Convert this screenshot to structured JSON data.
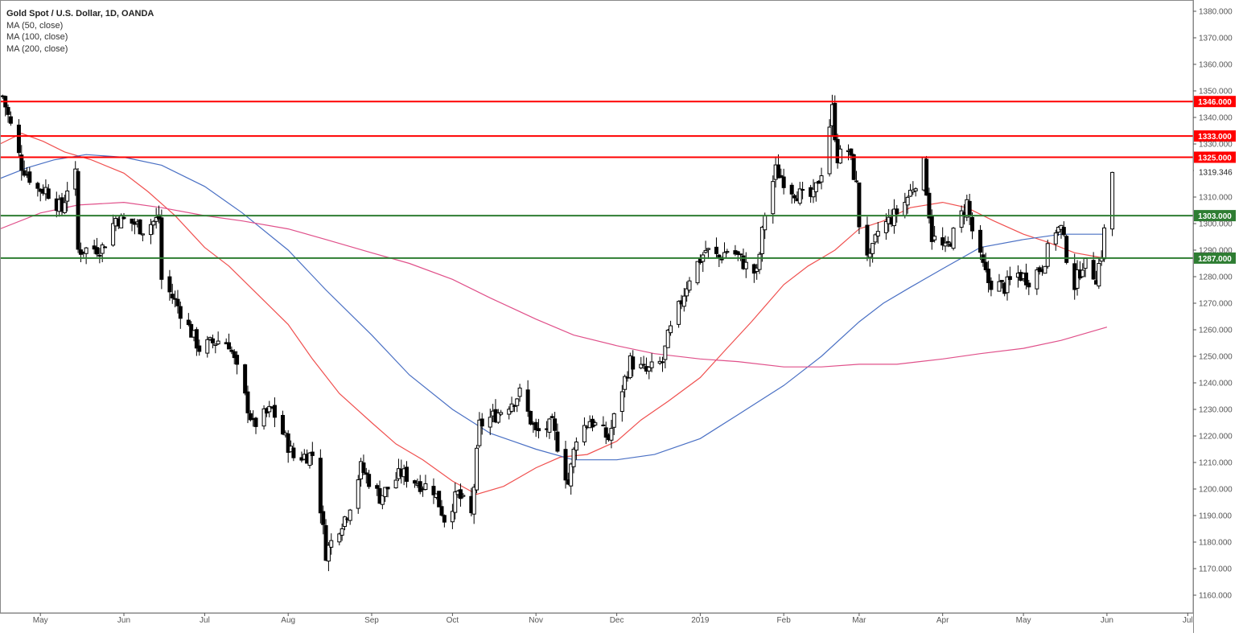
{
  "chart_data": {
    "type": "candlestick",
    "title": "Gold Spot / U.S. Dollar, 1D, OANDA",
    "indicators": [
      {
        "label": "MA (50, close)",
        "color": "#f0504f"
      },
      {
        "label": "MA (100, close)",
        "color": "#4a70c4"
      },
      {
        "label": "MA (200, close)",
        "color": "#e0508a"
      }
    ],
    "y_axis": {
      "ylim": [
        1155,
        1382
      ],
      "ticks": [
        1160,
        1170,
        1180,
        1190,
        1200,
        1210,
        1220,
        1230,
        1240,
        1250,
        1260,
        1270,
        1280,
        1290,
        1300,
        1310,
        1320,
        1330,
        1340,
        1350,
        1360,
        1370,
        1380
      ],
      "tick_labels": [
        "1160.000",
        "1170.000",
        "1180.000",
        "1190.000",
        "1200.000",
        "1210.000",
        "1220.000",
        "1230.000",
        "1240.000",
        "1250.000",
        "1260.000",
        "1270.000",
        "1280.000",
        "1290.000",
        "1300.000",
        "1310.000",
        "1320.000",
        "1330.000",
        "1340.000",
        "1350.000",
        "1360.000",
        "1370.000",
        "1380.000"
      ],
      "last_price": 1319.346,
      "last_price_label": "1319.346"
    },
    "x_axis": {
      "labels": [
        {
          "label": "May",
          "date": "2018-05-01"
        },
        {
          "label": "Jun",
          "date": "2018-06-01"
        },
        {
          "label": "Jul",
          "date": "2018-07-01"
        },
        {
          "label": "Aug",
          "date": "2018-08-01"
        },
        {
          "label": "Sep",
          "date": "2018-09-01"
        },
        {
          "label": "Oct",
          "date": "2018-10-01"
        },
        {
          "label": "Nov",
          "date": "2018-11-01"
        },
        {
          "label": "Dec",
          "date": "2018-12-01"
        },
        {
          "label": "2019",
          "date": "2019-01-01"
        },
        {
          "label": "Feb",
          "date": "2019-02-01"
        },
        {
          "label": "Mar",
          "date": "2019-03-01"
        },
        {
          "label": "Apr",
          "date": "2019-04-01"
        },
        {
          "label": "May",
          "date": "2019-05-01"
        },
        {
          "label": "Jun",
          "date": "2019-06-01"
        },
        {
          "label": "Jul",
          "date": "2019-07-01"
        }
      ],
      "range": [
        "2018-04-16",
        "2019-07-03"
      ]
    },
    "horizontal_levels": [
      {
        "value": 1346,
        "label": "1346.000",
        "kind": "resistance",
        "color": "#ff0000"
      },
      {
        "value": 1333,
        "label": "1333.000",
        "kind": "resistance",
        "color": "#ff0000"
      },
      {
        "value": 1325,
        "label": "1325.000",
        "kind": "resistance",
        "color": "#ff0000"
      },
      {
        "value": 1303,
        "label": "1303.000",
        "kind": "support",
        "color": "#2e7d32"
      },
      {
        "value": 1287,
        "label": "1287.000",
        "kind": "support",
        "color": "#2e7d32"
      }
    ],
    "price_path": [
      [
        "2018-04-17",
        1348
      ],
      [
        "2018-04-24",
        1322
      ],
      [
        "2018-04-30",
        1313
      ],
      [
        "2018-05-03",
        1313
      ],
      [
        "2018-05-09",
        1305
      ],
      [
        "2018-05-12",
        1318
      ],
      [
        "2018-05-14",
        1318
      ],
      [
        "2018-05-15",
        1290
      ],
      [
        "2018-05-24",
        1291
      ],
      [
        "2018-05-29",
        1302
      ],
      [
        "2018-06-05",
        1300
      ],
      [
        "2018-06-08",
        1298
      ],
      [
        "2018-06-14",
        1302
      ],
      [
        "2018-06-15",
        1279
      ],
      [
        "2018-06-21",
        1269
      ],
      [
        "2018-06-29",
        1253
      ],
      [
        "2018-07-06",
        1256
      ],
      [
        "2018-07-10",
        1255
      ],
      [
        "2018-07-19",
        1224
      ],
      [
        "2018-07-26",
        1230
      ],
      [
        "2018-08-03",
        1212
      ],
      [
        "2018-08-10",
        1213
      ],
      [
        "2018-08-13",
        1193
      ],
      [
        "2018-08-15",
        1176
      ],
      [
        "2018-08-20",
        1186
      ],
      [
        "2018-08-23",
        1191
      ],
      [
        "2018-08-28",
        1208
      ],
      [
        "2018-09-04",
        1197
      ],
      [
        "2018-09-12",
        1206
      ],
      [
        "2018-09-19",
        1202
      ],
      [
        "2018-09-24",
        1200
      ],
      [
        "2018-09-28",
        1189
      ],
      [
        "2018-10-03",
        1198
      ],
      [
        "2018-10-08",
        1190
      ],
      [
        "2018-10-11",
        1224
      ],
      [
        "2018-10-17",
        1228
      ],
      [
        "2018-10-23",
        1233
      ],
      [
        "2018-10-26",
        1236
      ],
      [
        "2018-11-01",
        1221
      ],
      [
        "2018-11-07",
        1224
      ],
      [
        "2018-11-10",
        1213
      ],
      [
        "2018-11-13",
        1202
      ],
      [
        "2018-11-16",
        1220
      ],
      [
        "2018-11-21",
        1226
      ],
      [
        "2018-11-28",
        1219
      ],
      [
        "2018-12-03",
        1238
      ],
      [
        "2018-12-06",
        1248
      ],
      [
        "2018-12-12",
        1244
      ],
      [
        "2018-12-18",
        1248
      ],
      [
        "2018-12-20",
        1257
      ],
      [
        "2018-12-24",
        1268
      ],
      [
        "2018-12-28",
        1280
      ],
      [
        "2019-01-03",
        1290
      ],
      [
        "2019-01-08",
        1287
      ],
      [
        "2019-01-12",
        1291
      ],
      [
        "2019-01-18",
        1284
      ],
      [
        "2019-01-22",
        1281
      ],
      [
        "2019-01-25",
        1304
      ],
      [
        "2019-01-29",
        1320
      ],
      [
        "2019-02-04",
        1313
      ],
      [
        "2019-02-08",
        1310
      ],
      [
        "2019-02-12",
        1310
      ],
      [
        "2019-02-15",
        1320
      ],
      [
        "2019-02-19",
        1343
      ],
      [
        "2019-02-21",
        1325
      ],
      [
        "2019-02-25",
        1328
      ],
      [
        "2019-02-28",
        1314
      ],
      [
        "2019-03-01",
        1300
      ],
      [
        "2019-03-05",
        1286
      ],
      [
        "2019-03-08",
        1297
      ],
      [
        "2019-03-14",
        1303
      ],
      [
        "2019-03-18",
        1308
      ],
      [
        "2019-03-25",
        1322
      ],
      [
        "2019-03-28",
        1295
      ],
      [
        "2019-04-02",
        1290
      ],
      [
        "2019-04-05",
        1296
      ],
      [
        "2019-04-10",
        1308
      ],
      [
        "2019-04-13",
        1292
      ],
      [
        "2019-04-18",
        1278
      ],
      [
        "2019-04-24",
        1276
      ],
      [
        "2019-04-29",
        1281
      ],
      [
        "2019-05-03",
        1279
      ],
      [
        "2019-05-08",
        1284
      ],
      [
        "2019-05-13",
        1298
      ],
      [
        "2019-05-15",
        1298
      ],
      [
        "2019-05-17",
        1288
      ],
      [
        "2019-05-20",
        1277
      ],
      [
        "2019-05-23",
        1285
      ],
      [
        "2019-05-28",
        1280
      ],
      [
        "2019-05-30",
        1289
      ],
      [
        "2019-06-01",
        1305
      ],
      [
        "2019-06-03",
        1319.346
      ]
    ],
    "moving_averages": [
      {
        "label": "MA (50, close)",
        "color": "#f0504f",
        "points": [
          [
            "2018-04-16",
            1330
          ],
          [
            "2018-04-24",
            1334
          ],
          [
            "2018-05-02",
            1331
          ],
          [
            "2018-05-10",
            1327
          ],
          [
            "2018-05-20",
            1324
          ],
          [
            "2018-06-01",
            1319
          ],
          [
            "2018-06-10",
            1312
          ],
          [
            "2018-06-20",
            1303
          ],
          [
            "2018-07-01",
            1291
          ],
          [
            "2018-07-10",
            1284
          ],
          [
            "2018-07-20",
            1274
          ],
          [
            "2018-08-01",
            1262
          ],
          [
            "2018-08-10",
            1249
          ],
          [
            "2018-08-20",
            1236
          ],
          [
            "2018-09-01",
            1225
          ],
          [
            "2018-09-10",
            1217
          ],
          [
            "2018-09-20",
            1211
          ],
          [
            "2018-10-01",
            1203
          ],
          [
            "2018-10-10",
            1198
          ],
          [
            "2018-10-20",
            1201
          ],
          [
            "2018-11-01",
            1208
          ],
          [
            "2018-11-10",
            1212
          ],
          [
            "2018-11-20",
            1213
          ],
          [
            "2018-12-01",
            1218
          ],
          [
            "2018-12-10",
            1226
          ],
          [
            "2018-12-20",
            1233
          ],
          [
            "2019-01-01",
            1242
          ],
          [
            "2019-01-10",
            1252
          ],
          [
            "2019-01-20",
            1263
          ],
          [
            "2019-02-01",
            1277
          ],
          [
            "2019-02-10",
            1284
          ],
          [
            "2019-02-20",
            1290
          ],
          [
            "2019-03-01",
            1298
          ],
          [
            "2019-03-10",
            1301
          ],
          [
            "2019-03-20",
            1306
          ],
          [
            "2019-04-01",
            1308
          ],
          [
            "2019-04-10",
            1306
          ],
          [
            "2019-04-20",
            1301
          ],
          [
            "2019-05-01",
            1296
          ],
          [
            "2019-05-10",
            1293
          ],
          [
            "2019-05-20",
            1289
          ],
          [
            "2019-05-31",
            1287
          ]
        ]
      },
      {
        "label": "MA (100, close)",
        "color": "#4a70c4",
        "points": [
          [
            "2018-04-16",
            1317
          ],
          [
            "2018-04-26",
            1321
          ],
          [
            "2018-05-06",
            1324
          ],
          [
            "2018-05-18",
            1326
          ],
          [
            "2018-06-01",
            1325
          ],
          [
            "2018-06-15",
            1322
          ],
          [
            "2018-07-01",
            1314
          ],
          [
            "2018-07-15",
            1304
          ],
          [
            "2018-08-01",
            1290
          ],
          [
            "2018-08-15",
            1275
          ],
          [
            "2018-09-01",
            1258
          ],
          [
            "2018-09-15",
            1243
          ],
          [
            "2018-10-01",
            1230
          ],
          [
            "2018-10-15",
            1221
          ],
          [
            "2018-11-01",
            1215
          ],
          [
            "2018-11-15",
            1211
          ],
          [
            "2018-12-01",
            1211
          ],
          [
            "2018-12-15",
            1213
          ],
          [
            "2019-01-01",
            1219
          ],
          [
            "2019-01-15",
            1228
          ],
          [
            "2019-02-01",
            1239
          ],
          [
            "2019-02-15",
            1250
          ],
          [
            "2019-03-01",
            1263
          ],
          [
            "2019-03-10",
            1270
          ],
          [
            "2019-03-20",
            1276
          ],
          [
            "2019-04-01",
            1283
          ],
          [
            "2019-04-15",
            1291
          ],
          [
            "2019-05-01",
            1294
          ],
          [
            "2019-05-15",
            1296
          ],
          [
            "2019-05-31",
            1296
          ]
        ]
      },
      {
        "label": "MA (200, close)",
        "color": "#e0508a",
        "points": [
          [
            "2018-04-16",
            1298
          ],
          [
            "2018-05-01",
            1304
          ],
          [
            "2018-05-15",
            1307
          ],
          [
            "2018-06-01",
            1308
          ],
          [
            "2018-06-15",
            1306
          ],
          [
            "2018-07-01",
            1303
          ],
          [
            "2018-07-15",
            1301
          ],
          [
            "2018-08-01",
            1298
          ],
          [
            "2018-08-15",
            1294
          ],
          [
            "2018-09-01",
            1289
          ],
          [
            "2018-09-15",
            1285
          ],
          [
            "2018-10-01",
            1279
          ],
          [
            "2018-10-15",
            1272
          ],
          [
            "2018-11-01",
            1264
          ],
          [
            "2018-11-15",
            1258
          ],
          [
            "2018-12-01",
            1254
          ],
          [
            "2018-12-15",
            1251
          ],
          [
            "2019-01-01",
            1249
          ],
          [
            "2019-01-15",
            1248
          ],
          [
            "2019-02-01",
            1246
          ],
          [
            "2019-02-15",
            1246
          ],
          [
            "2019-03-01",
            1247
          ],
          [
            "2019-03-15",
            1247
          ],
          [
            "2019-04-01",
            1249
          ],
          [
            "2019-04-15",
            1251
          ],
          [
            "2019-05-01",
            1253
          ],
          [
            "2019-05-15",
            1256
          ],
          [
            "2019-06-01",
            1261
          ]
        ]
      }
    ],
    "grid": false,
    "legend_placement": "top-left"
  },
  "colors": {
    "candle": "#000000",
    "axis": "#555555",
    "resistance": "#ff0000",
    "support": "#2e7d32"
  }
}
